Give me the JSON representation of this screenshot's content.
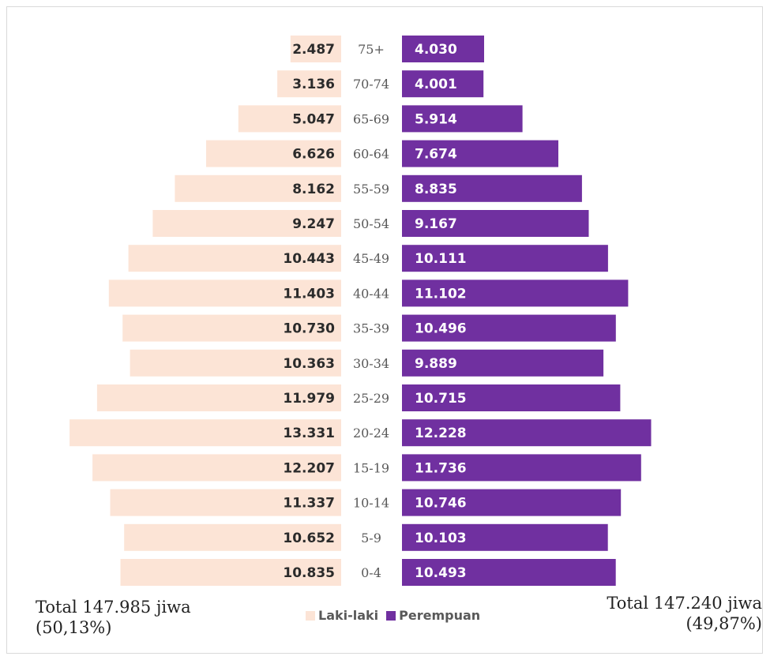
{
  "chart_data": {
    "type": "bar",
    "orientation": "horizontal",
    "layout": "population-pyramid",
    "categories": [
      "75+",
      "70-74",
      "65-69",
      "60-64",
      "55-59",
      "50-54",
      "45-49",
      "40-44",
      "35-39",
      "30-34",
      "25-29",
      "20-24",
      "15-19",
      "10-14",
      "5-9",
      "0-4"
    ],
    "series": [
      {
        "name": "Laki-laki",
        "color": "#fce4d6",
        "values": [
          2487,
          3136,
          5047,
          6626,
          8162,
          9247,
          10443,
          11403,
          10730,
          10363,
          11979,
          13331,
          12207,
          11337,
          10652,
          10835
        ],
        "labels": [
          "2.487",
          "3.136",
          "5.047",
          "6.626",
          "8.162",
          "9.247",
          "10.443",
          "11.403",
          "10.730",
          "10.363",
          "11.979",
          "13.331",
          "12.207",
          "11.337",
          "10.652",
          "10.835"
        ]
      },
      {
        "name": "Perempuan",
        "color": "#7030a0",
        "values": [
          4030,
          4001,
          5914,
          7674,
          8835,
          9167,
          10111,
          11102,
          10496,
          9889,
          10715,
          12228,
          11736,
          10746,
          10103,
          10493
        ],
        "labels": [
          "4.030",
          "4.001",
          "5.914",
          "7.674",
          "8.835",
          "9.167",
          "10.111",
          "11.102",
          "10.496",
          "9.889",
          "10.715",
          "12.228",
          "11.736",
          "10.746",
          "10.103",
          "10.493"
        ]
      }
    ],
    "legend_position": "bottom",
    "grid": false
  },
  "totals": {
    "left_line1": "Total 147.985 jiwa",
    "left_line2": "(50,13%)",
    "right_line1": "Total 147.240 jiwa",
    "right_line2": "(49,87%)"
  },
  "legend": {
    "male_label": "Laki-laki",
    "female_label": "Perempuan",
    "male_color": "#fce4d6",
    "female_color": "#7030a0"
  }
}
